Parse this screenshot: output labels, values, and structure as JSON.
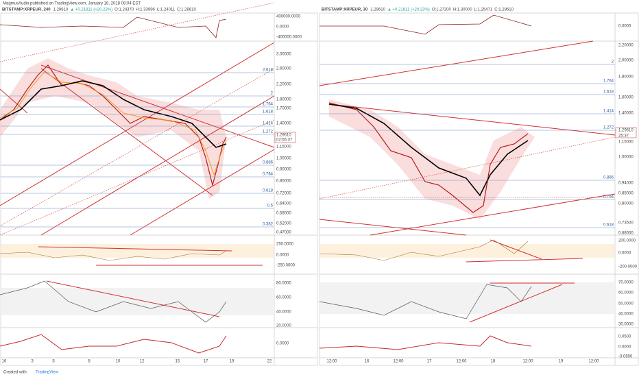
{
  "header": "MagmusAudio published on TradingView.com, January 18, 2018 08:04 EST",
  "footer": {
    "created": "Created with",
    "brand": "TradingView"
  },
  "charts": [
    {
      "symbol": "BITSTAMP:XRPEUR, 240",
      "last": "1.29610",
      "change": "▲ +0.21811 (+20.23%)",
      "ohlc": [
        "O:1.24370",
        "H:1.33996",
        "L:1.24011",
        "C:1.29610"
      ],
      "price_labels": [
        "3.00000",
        "2.60000",
        "2.20000",
        "1.80000",
        "1.70000",
        "1.40000",
        "1.15000",
        "1.00000",
        "0.90000",
        "0.80000",
        "0.72000",
        "0.64000",
        "0.58000",
        "0.52000",
        "0.47000"
      ],
      "fib_labels": [
        "2.618",
        "2",
        "1.764",
        "1.618",
        "1.414",
        "1.272",
        "0.886",
        "0.764",
        "0.618",
        "0.5",
        "0.382"
      ],
      "countdown": "02:55:37",
      "osc_labels": [
        [
          "400000.0000",
          "0.0000",
          "-400000.0000"
        ],
        [
          "250.0000",
          "0.0000",
          "-250.0000"
        ],
        [
          "80.0000",
          "60.0000",
          "40.0000",
          "20.0000"
        ],
        [
          "0.0000"
        ]
      ],
      "dates": [
        "16",
        "3",
        "5",
        "8",
        "10",
        "12",
        "15",
        "17",
        "19",
        "22"
      ]
    },
    {
      "symbol": "BITSTAMP:XRPEUR, 30",
      "last": "1.29610",
      "change": "▲ +0.21811 (+20.23%)",
      "ohlc": [
        "O:1.27200",
        "H:1.30000",
        "L:1.25471",
        "C:1.29610"
      ],
      "price_labels": [
        "2.20000",
        "2.00000",
        "1.80000",
        "1.60000",
        "1.40000",
        "1.15000",
        "1.00000",
        "0.94000",
        "0.85000",
        "0.80000",
        "0.73500",
        "0.68000"
      ],
      "fib_labels": [
        "2",
        "1.764",
        "1.618",
        "1.414",
        "1.272",
        "0.886",
        "0.764",
        "0.618"
      ],
      "countdown": "25:37",
      "osc_labels": [
        [
          "0.0000"
        ],
        [
          "200.0000",
          "0.0000",
          "-200.0000"
        ],
        [
          "70.0000",
          "60.0000",
          "50.0000",
          "40.0000",
          "30.0000"
        ],
        [
          "0.0500",
          "0.0000",
          "-0.0500"
        ]
      ],
      "dates": [
        "12:00",
        "16",
        "12:00",
        "17",
        "12:00",
        "18",
        "12:00",
        "19",
        "12:00"
      ]
    }
  ]
}
